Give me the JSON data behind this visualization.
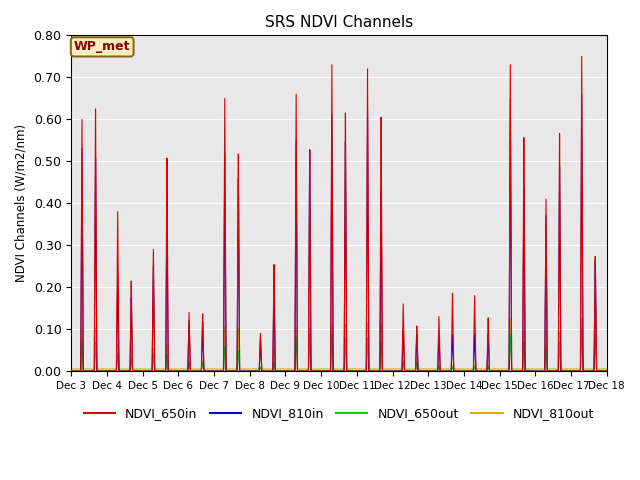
{
  "title": "SRS NDVI Channels",
  "ylabel": "NDVI Channels (W/m2/nm)",
  "ylim": [
    0.0,
    0.8
  ],
  "background_color": "#e8e8e8",
  "legend_label": "WP_met",
  "series": {
    "NDVI_650in": {
      "color": "#dd0000",
      "lw": 0.8
    },
    "NDVI_810in": {
      "color": "#0000dd",
      "lw": 0.8
    },
    "NDVI_650out": {
      "color": "#00cc00",
      "lw": 0.8
    },
    "NDVI_810out": {
      "color": "#ddaa00",
      "lw": 0.8
    }
  },
  "day_peaks": {
    "Dec 3": {
      "r1": 0.6,
      "r2": 0.64,
      "b1": 0.53,
      "b2": 0.52,
      "g1": 0.07,
      "g2": 0.07,
      "o1": 0.1,
      "o2": 0.1
    },
    "Dec 4": {
      "r1": 0.38,
      "r2": 0.22,
      "b1": 0.22,
      "b2": 0.18,
      "g1": 0.04,
      "g2": 0.03,
      "o1": 0.06,
      "o2": 0.05
    },
    "Dec 5": {
      "r1": 0.29,
      "r2": 0.52,
      "b1": 0.25,
      "b2": 0.39,
      "g1": 0.04,
      "g2": 0.04,
      "o1": 0.05,
      "o2": 0.06
    },
    "Dec 6": {
      "r1": 0.14,
      "r2": 0.14,
      "b1": 0.12,
      "b2": 0.12,
      "g1": 0.02,
      "g2": 0.02,
      "o1": 0.02,
      "o2": 0.02
    },
    "Dec 7": {
      "r1": 0.65,
      "r2": 0.53,
      "b1": 0.52,
      "b2": 0.47,
      "g1": 0.06,
      "g2": 0.05,
      "o1": 0.1,
      "o2": 0.1
    },
    "Dec 8": {
      "r1": 0.09,
      "r2": 0.26,
      "b1": 0.08,
      "b2": 0.21,
      "g1": 0.01,
      "g2": 0.02,
      "o1": 0.04,
      "o2": 0.05
    },
    "Dec 9": {
      "r1": 0.66,
      "r2": 0.54,
      "b1": 0.55,
      "b2": 0.54,
      "g1": 0.08,
      "g2": 0.09,
      "o1": 0.1,
      "o2": 0.1
    },
    "Dec 10": {
      "r1": 0.73,
      "r2": 0.63,
      "b1": 0.61,
      "b2": 0.56,
      "g1": 0.09,
      "g2": 0.08,
      "o1": 0.11,
      "o2": 0.11
    },
    "Dec 11": {
      "r1": 0.72,
      "r2": 0.62,
      "b1": 0.62,
      "b2": 0.44,
      "g1": 0.08,
      "g2": 0.07,
      "o1": 0.11,
      "o2": 0.11
    },
    "Dec 12": {
      "r1": 0.16,
      "r2": 0.11,
      "b1": 0.1,
      "b2": 0.09,
      "g1": 0.02,
      "g2": 0.02,
      "o1": 0.02,
      "o2": 0.02
    },
    "Dec 13": {
      "r1": 0.13,
      "r2": 0.19,
      "b1": 0.09,
      "b2": 0.09,
      "g1": 0.01,
      "g2": 0.01,
      "o1": 0.01,
      "o2": 0.01
    },
    "Dec 14": {
      "r1": 0.18,
      "r2": 0.13,
      "b1": 0.09,
      "b2": 0.09,
      "g1": 0.01,
      "g2": 0.01,
      "o1": 0.01,
      "o2": 0.01
    },
    "Dec 15": {
      "r1": 0.73,
      "r2": 0.57,
      "b1": 0.65,
      "b2": 0.45,
      "g1": 0.09,
      "g2": 0.07,
      "o1": 0.12,
      "o2": 0.09
    },
    "Dec 16": {
      "r1": 0.41,
      "r2": 0.58,
      "b1": 0.37,
      "b2": 0.5,
      "g1": 0.06,
      "g2": 0.07,
      "o1": 0.09,
      "o2": 0.09
    },
    "Dec 17": {
      "r1": 0.75,
      "r2": 0.28,
      "b1": 0.66,
      "b2": 0.27,
      "g1": 0.1,
      "g2": 0.09,
      "o1": 0.12,
      "o2": 0.12
    }
  },
  "xtick_labels": [
    "Dec 3",
    "Dec 4",
    "Dec 5",
    "Dec 6",
    "Dec 7",
    "Dec 8",
    "Dec 9",
    "Dec 10",
    "Dec 11",
    "Dec 12",
    "Dec 13",
    "Dec 14",
    "Dec 15",
    "Dec 16",
    "Dec 17",
    "Dec 18"
  ],
  "ytick_labels": [
    "0.00",
    "0.10",
    "0.20",
    "0.30",
    "0.40",
    "0.50",
    "0.60",
    "0.70",
    "0.80"
  ],
  "o_baseline": 0.005
}
